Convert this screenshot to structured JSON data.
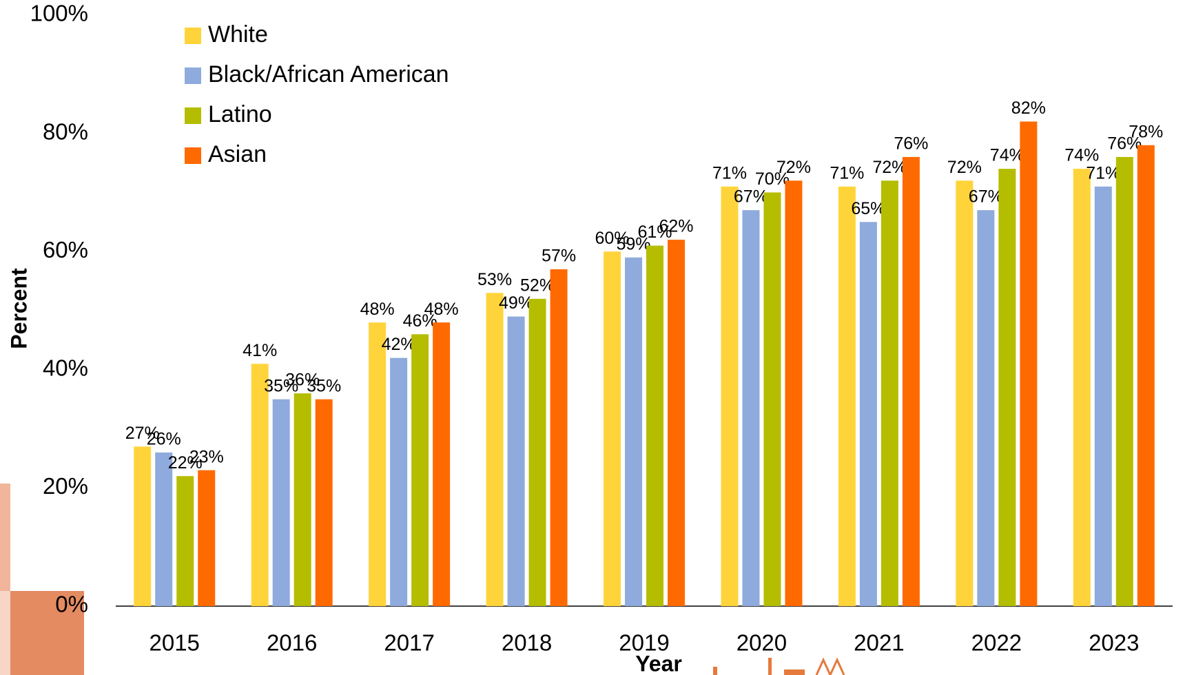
{
  "chart_data": {
    "type": "bar",
    "x_label": "Year",
    "y_label": "Percent",
    "categories": [
      "2015",
      "2016",
      "2017",
      "2018",
      "2019",
      "2020",
      "2021",
      "2022",
      "2023"
    ],
    "series": [
      {
        "name": "White",
        "color": "#ffd43b",
        "values": [
          27,
          41,
          48,
          53,
          60,
          71,
          71,
          72,
          74
        ],
        "value_labels": [
          "27%",
          "41%",
          "48%",
          "53%",
          "60%",
          "71%",
          "71%",
          "72%",
          "74%"
        ]
      },
      {
        "name": "Black/African American",
        "color": "#8faadc",
        "values": [
          26,
          35,
          42,
          49,
          59,
          67,
          65,
          67,
          71
        ],
        "value_labels": [
          "26%",
          "35%",
          "42%",
          "49%",
          "59%",
          "67%",
          "65%",
          "67%",
          "71%"
        ]
      },
      {
        "name": "Latino",
        "color": "#b5bd00",
        "values": [
          22,
          36,
          46,
          52,
          61,
          70,
          72,
          74,
          76
        ],
        "value_labels": [
          "22%",
          "36%",
          "46%",
          "52%",
          "61%",
          "70%",
          "72%",
          "74%",
          "76%"
        ]
      },
      {
        "name": "Asian",
        "color": "#ff6a00",
        "values": [
          23,
          35,
          48,
          57,
          62,
          72,
          76,
          82,
          78
        ],
        "value_labels": [
          "23%",
          "35%",
          "48%",
          "57%",
          "62%",
          "72%",
          "76%",
          "82%",
          "78%"
        ]
      }
    ],
    "ylim": [
      0,
      100
    ],
    "yticks": [
      {
        "value": 0,
        "label": "0%"
      },
      {
        "value": 20,
        "label": "20%"
      },
      {
        "value": 40,
        "label": "40%"
      },
      {
        "value": 60,
        "label": "60%"
      },
      {
        "value": 80,
        "label": "80%"
      },
      {
        "value": 100,
        "label": "100%"
      }
    ],
    "grid": false,
    "legend": "upper left"
  }
}
